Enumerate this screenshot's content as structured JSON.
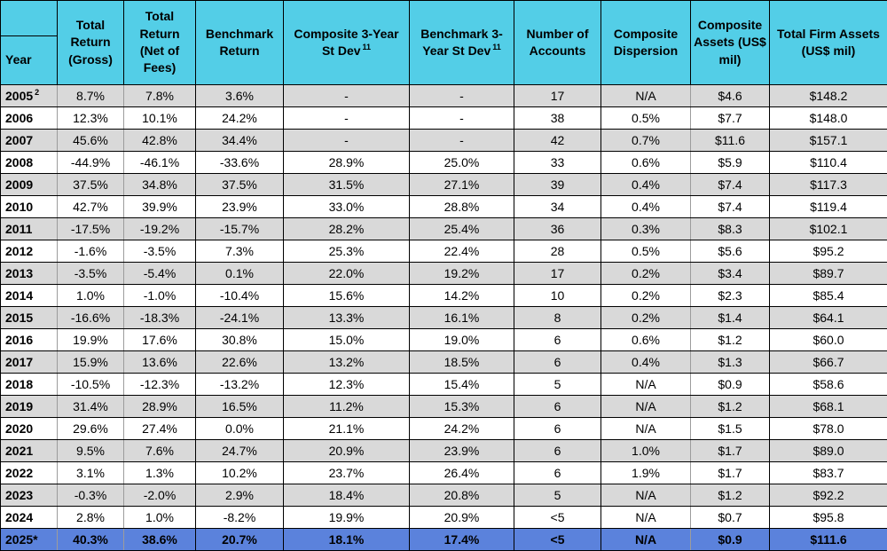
{
  "table": {
    "columns": [
      {
        "text": "Year",
        "sup": ""
      },
      {
        "text": "Total Return (Gross)",
        "sup": ""
      },
      {
        "text": "Total Return (Net of Fees)",
        "sup": ""
      },
      {
        "text": "Benchmark Return",
        "sup": ""
      },
      {
        "text": "Composite 3-Year St Dev",
        "sup": "11"
      },
      {
        "text": "Benchmark 3-Year St Dev",
        "sup": "11"
      },
      {
        "text": "Number of Accounts",
        "sup": ""
      },
      {
        "text": "Composite Dispersion",
        "sup": ""
      },
      {
        "text": "Composite Assets (US$ mil)",
        "sup": ""
      },
      {
        "text": "Total Firm Assets (US$ mil)",
        "sup": ""
      }
    ],
    "rows": [
      {
        "year": "2005",
        "year_sup": "2",
        "band": "gray",
        "values": [
          "8.7%",
          "7.8%",
          "3.6%",
          "-",
          "-",
          "17",
          "N/A",
          "$4.6",
          "$148.2"
        ]
      },
      {
        "year": "2006",
        "year_sup": "",
        "band": "white",
        "values": [
          "12.3%",
          "10.1%",
          "24.2%",
          "-",
          "-",
          "38",
          "0.5%",
          "$7.7",
          "$148.0"
        ]
      },
      {
        "year": "2007",
        "year_sup": "",
        "band": "gray",
        "values": [
          "45.6%",
          "42.8%",
          "34.4%",
          "-",
          "-",
          "42",
          "0.7%",
          "$11.6",
          "$157.1"
        ]
      },
      {
        "year": "2008",
        "year_sup": "",
        "band": "white",
        "values": [
          "-44.9%",
          "-46.1%",
          "-33.6%",
          "28.9%",
          "25.0%",
          "33",
          "0.6%",
          "$5.9",
          "$110.4"
        ]
      },
      {
        "year": "2009",
        "year_sup": "",
        "band": "gray",
        "values": [
          "37.5%",
          "34.8%",
          "37.5%",
          "31.5%",
          "27.1%",
          "39",
          "0.4%",
          "$7.4",
          "$117.3"
        ]
      },
      {
        "year": "2010",
        "year_sup": "",
        "band": "white",
        "values": [
          "42.7%",
          "39.9%",
          "23.9%",
          "33.0%",
          "28.8%",
          "34",
          "0.4%",
          "$7.4",
          "$119.4"
        ]
      },
      {
        "year": "2011",
        "year_sup": "",
        "band": "gray",
        "values": [
          "-17.5%",
          "-19.2%",
          "-15.7%",
          "28.2%",
          "25.4%",
          "36",
          "0.3%",
          "$8.3",
          "$102.1"
        ]
      },
      {
        "year": "2012",
        "year_sup": "",
        "band": "white",
        "values": [
          "-1.6%",
          "-3.5%",
          "7.3%",
          "25.3%",
          "22.4%",
          "28",
          "0.5%",
          "$5.6",
          "$95.2"
        ]
      },
      {
        "year": "2013",
        "year_sup": "",
        "band": "gray",
        "values": [
          "-3.5%",
          "-5.4%",
          "0.1%",
          "22.0%",
          "19.2%",
          "17",
          "0.2%",
          "$3.4",
          "$89.7"
        ]
      },
      {
        "year": "2014",
        "year_sup": "",
        "band": "white",
        "values": [
          "1.0%",
          "-1.0%",
          "-10.4%",
          "15.6%",
          "14.2%",
          "10",
          "0.2%",
          "$2.3",
          "$85.4"
        ]
      },
      {
        "year": "2015",
        "year_sup": "",
        "band": "gray",
        "values": [
          "-16.6%",
          "-18.3%",
          "-24.1%",
          "13.3%",
          "16.1%",
          "8",
          "0.2%",
          "$1.4",
          "$64.1"
        ]
      },
      {
        "year": "2016",
        "year_sup": "",
        "band": "white",
        "values": [
          "19.9%",
          "17.6%",
          "30.8%",
          "15.0%",
          "19.0%",
          "6",
          "0.6%",
          "$1.2",
          "$60.0"
        ]
      },
      {
        "year": "2017",
        "year_sup": "",
        "band": "gray",
        "values": [
          "15.9%",
          "13.6%",
          "22.6%",
          "13.2%",
          "18.5%",
          "6",
          "0.4%",
          "$1.3",
          "$66.7"
        ]
      },
      {
        "year": "2018",
        "year_sup": "",
        "band": "white",
        "values": [
          "-10.5%",
          "-12.3%",
          "-13.2%",
          "12.3%",
          "15.4%",
          "5",
          "N/A",
          "$0.9",
          "$58.6"
        ]
      },
      {
        "year": "2019",
        "year_sup": "",
        "band": "gray",
        "values": [
          "31.4%",
          "28.9%",
          "16.5%",
          "11.2%",
          "15.3%",
          "6",
          "N/A",
          "$1.2",
          "$68.1"
        ]
      },
      {
        "year": "2020",
        "year_sup": "",
        "band": "white",
        "values": [
          "29.6%",
          "27.4%",
          "0.0%",
          "21.1%",
          "24.2%",
          "6",
          "N/A",
          "$1.5",
          "$78.0"
        ]
      },
      {
        "year": "2021",
        "year_sup": "",
        "band": "gray",
        "values": [
          "9.5%",
          "7.6%",
          "24.7%",
          "20.9%",
          "23.9%",
          "6",
          "1.0%",
          "$1.7",
          "$89.0"
        ]
      },
      {
        "year": "2022",
        "year_sup": "",
        "band": "white",
        "values": [
          "3.1%",
          "1.3%",
          "10.2%",
          "23.7%",
          "26.4%",
          "6",
          "1.9%",
          "$1.7",
          "$83.7"
        ]
      },
      {
        "year": "2023",
        "year_sup": "",
        "band": "gray",
        "values": [
          "-0.3%",
          "-2.0%",
          "2.9%",
          "18.4%",
          "20.8%",
          "5",
          "N/A",
          "$1.2",
          "$92.2"
        ]
      },
      {
        "year": "2024",
        "year_sup": "",
        "band": "white",
        "values": [
          "2.8%",
          "1.0%",
          "-8.2%",
          "19.9%",
          "20.9%",
          "<5",
          "N/A",
          "$0.7",
          "$95.8"
        ]
      },
      {
        "year": "2025*",
        "year_sup": "",
        "band": "highlight",
        "values": [
          "40.3%",
          "38.6%",
          "20.7%",
          "18.1%",
          "17.4%",
          "<5",
          "N/A",
          "$0.9",
          "$111.6"
        ]
      }
    ]
  },
  "colors": {
    "header_bg": "#53CEE7",
    "gray_row": "#D9D9D9",
    "white_row": "#FFFFFF",
    "highlight_row": "#5B82DC",
    "border_black": "#000000",
    "grid_gray": "#9C9C9C"
  }
}
